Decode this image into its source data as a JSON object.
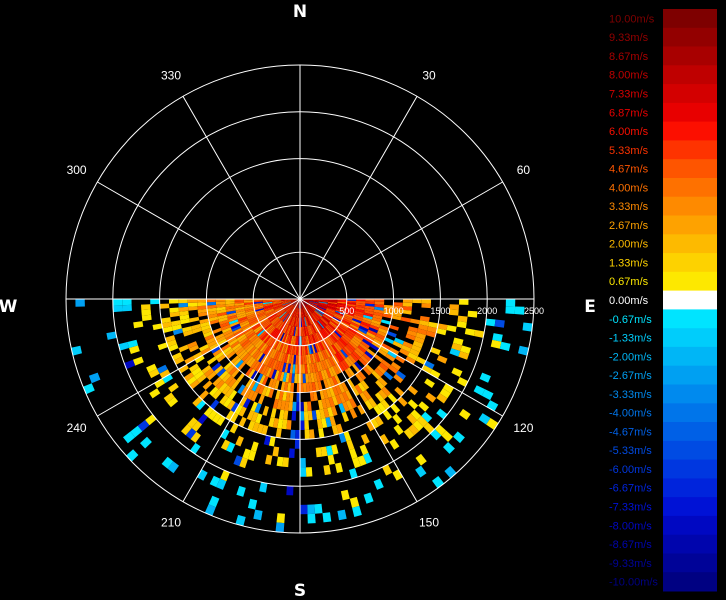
{
  "chart_data": {
    "type": "polar-radar",
    "compass": [
      "N",
      "E",
      "S",
      "W"
    ],
    "bearing_labels": [
      30,
      60,
      120,
      150,
      210,
      240,
      300,
      330
    ],
    "range_labels": [
      500,
      1000,
      1500,
      2000,
      2500
    ],
    "range_max": 2500,
    "data_sector": {
      "from_bearing": 90,
      "to_bearing": 270
    },
    "grid": true,
    "legend": {
      "placement": "right",
      "entries": [
        {
          "label": "10.00m/s",
          "value": 10.0,
          "color": "#7e0000"
        },
        {
          "label": "9.33m/s",
          "value": 9.33,
          "color": "#930000"
        },
        {
          "label": "8.67m/s",
          "value": 8.67,
          "color": "#a80000"
        },
        {
          "label": "8.00m/s",
          "value": 8.0,
          "color": "#bf0000"
        },
        {
          "label": "7.33m/s",
          "value": 7.33,
          "color": "#d30000"
        },
        {
          "label": "6.87m/s",
          "value": 6.87,
          "color": "#e80000"
        },
        {
          "label": "6.00m/s",
          "value": 6.0,
          "color": "#fc0f00"
        },
        {
          "label": "5.33m/s",
          "value": 5.33,
          "color": "#fe3300"
        },
        {
          "label": "4.67m/s",
          "value": 4.67,
          "color": "#fe5500"
        },
        {
          "label": "4.00m/s",
          "value": 4.0,
          "color": "#fe7100"
        },
        {
          "label": "3.33m/s",
          "value": 3.33,
          "color": "#fe8a00"
        },
        {
          "label": "2.67m/s",
          "value": 2.67,
          "color": "#fea200"
        },
        {
          "label": "2.00m/s",
          "value": 2.0,
          "color": "#fdba00"
        },
        {
          "label": "1.33m/s",
          "value": 1.33,
          "color": "#fdd200"
        },
        {
          "label": "0.67m/s",
          "value": 0.67,
          "color": "#fde800"
        },
        {
          "label": "0.00m/s",
          "value": 0.0,
          "color": "#ffffff"
        },
        {
          "label": "-0.67m/s",
          "value": -0.67,
          "color": "#00e4ff"
        },
        {
          "label": "-1.33m/s",
          "value": -1.33,
          "color": "#00cdfb"
        },
        {
          "label": "-2.00m/s",
          "value": -2.0,
          "color": "#00b6f6"
        },
        {
          "label": "-2.67m/s",
          "value": -2.67,
          "color": "#00a0f2"
        },
        {
          "label": "-3.33m/s",
          "value": -3.33,
          "color": "#008aee"
        },
        {
          "label": "-4.00m/s",
          "value": -4.0,
          "color": "#0075ea"
        },
        {
          "label": "-4.67m/s",
          "value": -4.67,
          "color": "#0060e6"
        },
        {
          "label": "-5.33m/s",
          "value": -5.33,
          "color": "#004be3"
        },
        {
          "label": "-6.00m/s",
          "value": -6.0,
          "color": "#0037e0"
        },
        {
          "label": "-6.67m/s",
          "value": -6.67,
          "color": "#0024dc"
        },
        {
          "label": "-7.33m/s",
          "value": -7.33,
          "color": "#0012d6"
        },
        {
          "label": "-8.00m/s",
          "value": -8.0,
          "color": "#0008c2"
        },
        {
          "label": "-8.67m/s",
          "value": -8.67,
          "color": "#0005ad"
        },
        {
          "label": "-9.33m/s",
          "value": -9.33,
          "color": "#000398"
        },
        {
          "label": "-10.00m/s",
          "value": -10.0,
          "color": "#000182"
        }
      ]
    }
  }
}
